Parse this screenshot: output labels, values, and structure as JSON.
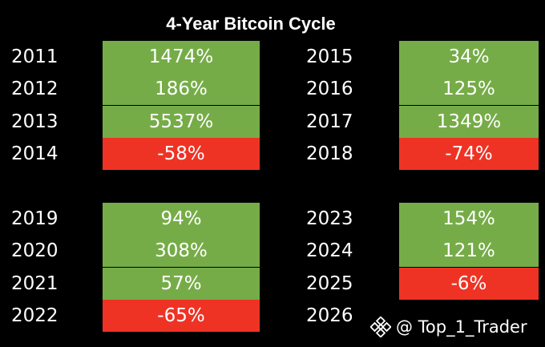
{
  "title": "4-Year Bitcoin Cycle",
  "colors": {
    "positive": "#76AC48",
    "negative": "#EE3325",
    "background": "#000000",
    "text": "#FFFFFF"
  },
  "chart_data": {
    "type": "table",
    "title": "4-Year Bitcoin Cycle",
    "cycles": [
      {
        "rows": [
          {
            "year": "2011",
            "value": "1474%",
            "pct": 1474
          },
          {
            "year": "2012",
            "value": "186%",
            "pct": 186
          },
          {
            "year": "2013",
            "value": "5537%",
            "pct": 5537
          },
          {
            "year": "2014",
            "value": "-58%",
            "pct": -58
          }
        ]
      },
      {
        "rows": [
          {
            "year": "2015",
            "value": "34%",
            "pct": 34
          },
          {
            "year": "2016",
            "value": "125%",
            "pct": 125
          },
          {
            "year": "2017",
            "value": "1349%",
            "pct": 1349
          },
          {
            "year": "2018",
            "value": "-74%",
            "pct": -74
          }
        ]
      },
      {
        "rows": [
          {
            "year": "2019",
            "value": "94%",
            "pct": 94
          },
          {
            "year": "2020",
            "value": "308%",
            "pct": 308
          },
          {
            "year": "2021",
            "value": "57%",
            "pct": 57
          },
          {
            "year": "2022",
            "value": "-65%",
            "pct": -65
          }
        ]
      },
      {
        "rows": [
          {
            "year": "2023",
            "value": "154%",
            "pct": 154
          },
          {
            "year": "2024",
            "value": "121%",
            "pct": 121
          },
          {
            "year": "2025",
            "value": "-6%",
            "pct": -6
          },
          {
            "year": "2026",
            "value": "",
            "pct": null
          }
        ]
      }
    ]
  },
  "watermark": {
    "icon": "binance-logo-icon",
    "text": "@ Top_1_Trader"
  }
}
